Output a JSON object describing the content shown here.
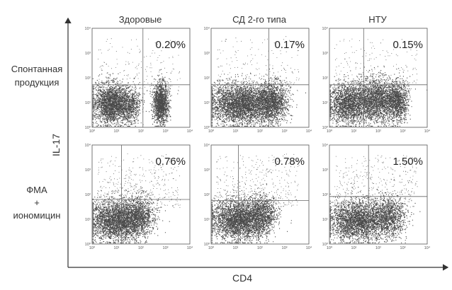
{
  "chart_data": {
    "type": "scatter",
    "kind": "flow-cytometry dot plots",
    "xlabel": "CD4",
    "ylabel": "IL-17",
    "scale": "log",
    "ticks": [
      "10⁰",
      "10¹",
      "10²",
      "10³",
      "10⁴"
    ],
    "columns": [
      "Здоровые",
      "СД 2-го типа",
      "НТУ"
    ],
    "rows": [
      {
        "label_lines": [
          "Спонтанная",
          "продукция"
        ]
      },
      {
        "label_lines": [
          "ФМА",
          "+",
          "иономицин"
        ]
      }
    ],
    "panels": [
      {
        "row": 0,
        "col": 0,
        "percent": "0.20%",
        "upper_right_fraction": 0.002
      },
      {
        "row": 0,
        "col": 1,
        "percent": "0.17%",
        "upper_right_fraction": 0.0017
      },
      {
        "row": 0,
        "col": 2,
        "percent": "0.15%",
        "upper_right_fraction": 0.0015
      },
      {
        "row": 1,
        "col": 0,
        "percent": "0.76%",
        "upper_right_fraction": 0.0076
      },
      {
        "row": 1,
        "col": 1,
        "percent": "0.78%",
        "upper_right_fraction": 0.0078
      },
      {
        "row": 1,
        "col": 2,
        "percent": "1.50%",
        "upper_right_fraction": 0.015
      }
    ]
  }
}
